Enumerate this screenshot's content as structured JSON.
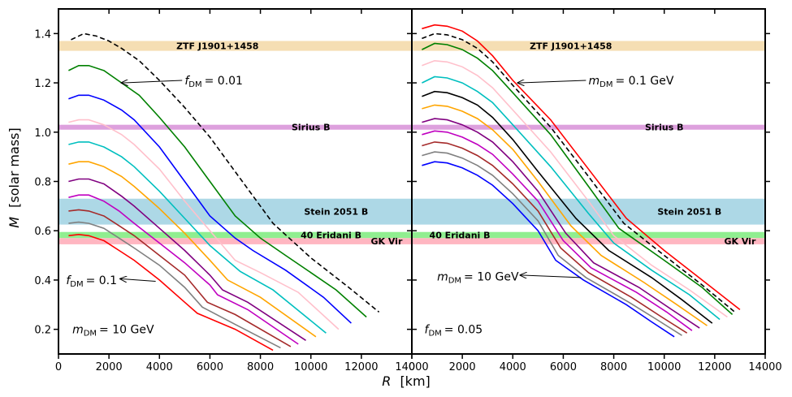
{
  "chart_data": [
    {
      "type": "line",
      "panel": "left",
      "xlabel_prefix": "R",
      "xlabel_unit": "[km]",
      "ylabel_prefix": "M",
      "ylabel_unit": "[solar mass]",
      "xlim": [
        0,
        14000
      ],
      "ylim": [
        0.1,
        1.5
      ],
      "xticks": [
        0,
        2000,
        4000,
        6000,
        8000,
        10000,
        12000,
        14000
      ],
      "xtick_labels": [
        "0",
        "2000",
        "4000",
        "6000",
        "8000",
        "10000",
        "12000",
        "14000"
      ],
      "yticks": [
        0.2,
        0.4,
        0.6,
        0.8,
        1.0,
        1.2,
        1.4
      ],
      "ytick_labels": [
        "0.2",
        "0.4",
        "0.6",
        "0.8",
        "1.0",
        "1.2",
        "1.4"
      ],
      "bands": [
        {
          "name": "ZTF J1901+1458",
          "y": [
            1.33,
            1.37
          ],
          "color": "#f5deb3",
          "label_x": 6300
        },
        {
          "name": "Sirius B",
          "y": [
            1.01,
            1.03
          ],
          "color": "#dda0dd",
          "label_x": 10000
        },
        {
          "name": "Stein 2051 B",
          "y": [
            0.625,
            0.73
          ],
          "color": "#add8e6",
          "label_x": 11000
        },
        {
          "name": "40 Eridani B",
          "y": [
            0.57,
            0.595
          ],
          "color": "#90ee90",
          "label_x": 10800
        },
        {
          "name": "GK Vir",
          "y": [
            0.545,
            0.57
          ],
          "color": "#ffb6c1",
          "label_x": 13000
        }
      ],
      "series": [
        {
          "name": "baseline",
          "color": "#000000",
          "dashed": true,
          "x": [
            500,
            1000,
            1500,
            2000,
            2500,
            3200,
            4000,
            5000,
            6000,
            7000,
            8500,
            10000,
            11500,
            12700
          ],
          "y": [
            1.375,
            1.4,
            1.39,
            1.37,
            1.34,
            1.29,
            1.21,
            1.1,
            0.98,
            0.84,
            0.63,
            0.49,
            0.37,
            0.27
          ]
        },
        {
          "name": "series-green",
          "color": "#008000",
          "dashed": false,
          "x": [
            400,
            800,
            1200,
            1800,
            2500,
            3200,
            4000,
            5000,
            6000,
            7000,
            8000,
            9000,
            10000,
            11000,
            12200
          ],
          "y": [
            1.25,
            1.27,
            1.27,
            1.25,
            1.2,
            1.15,
            1.06,
            0.94,
            0.8,
            0.66,
            0.57,
            0.5,
            0.43,
            0.36,
            0.25
          ]
        },
        {
          "name": "series-blue",
          "color": "#0000ff",
          "dashed": false,
          "x": [
            400,
            800,
            1200,
            1800,
            2500,
            3000,
            4000,
            5000,
            6000,
            7000,
            7700,
            9000,
            10500,
            11600
          ],
          "y": [
            1.135,
            1.15,
            1.15,
            1.13,
            1.09,
            1.05,
            0.94,
            0.8,
            0.66,
            0.57,
            0.52,
            0.44,
            0.33,
            0.225
          ]
        },
        {
          "name": "series-pink",
          "color": "#ffc0cb",
          "dashed": false,
          "x": [
            400,
            800,
            1200,
            1800,
            2500,
            3000,
            4000,
            5000,
            6000,
            7000,
            8000,
            9500,
            11100
          ],
          "y": [
            1.04,
            1.05,
            1.05,
            1.03,
            0.99,
            0.95,
            0.85,
            0.72,
            0.6,
            0.48,
            0.43,
            0.35,
            0.2
          ]
        },
        {
          "name": "series-cyan",
          "color": "#00bfbf",
          "dashed": false,
          "x": [
            400,
            800,
            1200,
            1800,
            2500,
            3000,
            4000,
            5000,
            6000,
            7200,
            8500,
            10600
          ],
          "y": [
            0.95,
            0.96,
            0.96,
            0.94,
            0.9,
            0.86,
            0.76,
            0.65,
            0.54,
            0.435,
            0.36,
            0.185
          ]
        },
        {
          "name": "series-orange",
          "color": "#ffa500",
          "dashed": false,
          "x": [
            400,
            800,
            1200,
            1800,
            2500,
            3000,
            4000,
            5000,
            6000,
            6700,
            8000,
            10200
          ],
          "y": [
            0.87,
            0.88,
            0.88,
            0.86,
            0.82,
            0.78,
            0.69,
            0.59,
            0.48,
            0.4,
            0.33,
            0.17
          ]
        },
        {
          "name": "series-purple",
          "color": "#800080",
          "dashed": false,
          "x": [
            400,
            800,
            1200,
            1800,
            2500,
            3000,
            4000,
            5000,
            6000,
            6500,
            7500,
            9800
          ],
          "y": [
            0.8,
            0.81,
            0.81,
            0.79,
            0.74,
            0.7,
            0.61,
            0.52,
            0.42,
            0.36,
            0.31,
            0.155
          ]
        },
        {
          "name": "series-magenta",
          "color": "#c000c0",
          "dashed": false,
          "x": [
            400,
            800,
            1200,
            1800,
            2400,
            3000,
            4000,
            5000,
            6000,
            6300,
            7500,
            9500
          ],
          "y": [
            0.735,
            0.745,
            0.745,
            0.72,
            0.68,
            0.63,
            0.55,
            0.47,
            0.38,
            0.34,
            0.28,
            0.14
          ]
        },
        {
          "name": "series-brown",
          "color": "#a52a2a",
          "dashed": false,
          "x": [
            400,
            800,
            1200,
            1800,
            2400,
            3000,
            4000,
            5000,
            5900,
            7000,
            9200
          ],
          "y": [
            0.68,
            0.685,
            0.68,
            0.66,
            0.62,
            0.58,
            0.5,
            0.42,
            0.31,
            0.26,
            0.13
          ]
        },
        {
          "name": "series-gray",
          "color": "#808080",
          "dashed": false,
          "x": [
            400,
            800,
            1200,
            1800,
            2400,
            3000,
            4000,
            5000,
            5700,
            7000,
            8800
          ],
          "y": [
            0.63,
            0.635,
            0.63,
            0.61,
            0.57,
            0.53,
            0.46,
            0.37,
            0.29,
            0.22,
            0.125
          ]
        },
        {
          "name": "series-red",
          "color": "#ff0000",
          "dashed": false,
          "x": [
            400,
            800,
            1200,
            1800,
            2400,
            3000,
            4000,
            5000,
            5500,
            7000,
            8500
          ],
          "y": [
            0.58,
            0.585,
            0.58,
            0.56,
            0.52,
            0.48,
            0.4,
            0.31,
            0.265,
            0.2,
            0.115
          ]
        }
      ],
      "annotations": [
        {
          "name": "fdm-annotation",
          "label": "f",
          "sub": "DM",
          "value": "= 0.01",
          "text_x": 5000,
          "text_y": 1.21,
          "arrow_from": [
            4900,
            1.21
          ],
          "arrow_to": [
            2500,
            1.2
          ]
        },
        {
          "name": "fdm-annotation-low",
          "label": "f",
          "sub": "DM",
          "value": "= 0.1",
          "text_x": 300,
          "text_y": 0.4,
          "arrow_from": [
            3850,
            0.395
          ],
          "arrow_to": [
            2450,
            0.405
          ]
        },
        {
          "name": "mdm-annotation",
          "label": "m",
          "sub": "DM",
          "value": "= 10 GeV",
          "text_x": 550,
          "text_y": 0.2
        }
      ]
    },
    {
      "type": "line",
      "panel": "right",
      "xlim": [
        0,
        14000
      ],
      "ylim": [
        0.1,
        1.5
      ],
      "xticks": [
        0,
        2000,
        4000,
        6000,
        8000,
        10000,
        12000,
        14000
      ],
      "xtick_labels": [
        "0",
        "2000",
        "4000",
        "6000",
        "8000",
        "10000",
        "12000",
        "14000"
      ],
      "yticks": [
        0.2,
        0.4,
        0.6,
        0.8,
        1.0,
        1.2,
        1.4
      ],
      "bands": [
        {
          "name": "ZTF J1901+1458",
          "y": [
            1.33,
            1.37
          ],
          "color": "#f5deb3",
          "label_x": 6300
        },
        {
          "name": "Sirius B",
          "y": [
            1.01,
            1.03
          ],
          "color": "#dda0dd",
          "label_x": 10000
        },
        {
          "name": "Stein 2051 B",
          "y": [
            0.625,
            0.73
          ],
          "color": "#add8e6",
          "label_x": 11000
        },
        {
          "name": "40 Eridani B",
          "y": [
            0.57,
            0.595
          ],
          "color": "#90ee90",
          "label_x": 1900
        },
        {
          "name": "GK Vir",
          "y": [
            0.545,
            0.57
          ],
          "color": "#ffb6c1",
          "label_x": 13000
        }
      ],
      "series": [
        {
          "name": "series-red",
          "color": "#ff0000",
          "dashed": false,
          "x": [
            400,
            900,
            1400,
            2000,
            2600,
            3200,
            4000,
            5500,
            7000,
            8500,
            10000,
            11500,
            13000
          ],
          "y": [
            1.42,
            1.435,
            1.43,
            1.41,
            1.37,
            1.31,
            1.21,
            1.05,
            0.85,
            0.65,
            0.52,
            0.4,
            0.28
          ]
        },
        {
          "name": "baseline",
          "color": "#000000",
          "dashed": true,
          "x": [
            400,
            900,
            1400,
            2000,
            2600,
            3200,
            4000,
            5500,
            7000,
            8400,
            10000,
            11500,
            12800
          ],
          "y": [
            1.38,
            1.4,
            1.395,
            1.375,
            1.34,
            1.285,
            1.19,
            1.02,
            0.82,
            0.63,
            0.5,
            0.38,
            0.27
          ]
        },
        {
          "name": "series-green",
          "color": "#008000",
          "dashed": false,
          "x": [
            400,
            900,
            1400,
            2000,
            2600,
            3200,
            4000,
            5500,
            7000,
            8200,
            10000,
            11500,
            12700
          ],
          "y": [
            1.335,
            1.36,
            1.355,
            1.335,
            1.3,
            1.25,
            1.16,
            0.99,
            0.78,
            0.61,
            0.48,
            0.37,
            0.26
          ]
        },
        {
          "name": "series-pink",
          "color": "#ffc0cb",
          "dashed": false,
          "x": [
            400,
            900,
            1400,
            2000,
            2600,
            3200,
            4000,
            5500,
            7000,
            8000,
            9500,
            11000,
            12500
          ],
          "y": [
            1.27,
            1.29,
            1.285,
            1.265,
            1.23,
            1.18,
            1.09,
            0.92,
            0.72,
            0.58,
            0.46,
            0.36,
            0.25
          ]
        },
        {
          "name": "series-cyan",
          "color": "#00bfbf",
          "dashed": false,
          "x": [
            400,
            900,
            1400,
            2000,
            2600,
            3200,
            4000,
            5500,
            7000,
            8000,
            9500,
            11000,
            12200
          ],
          "y": [
            1.2,
            1.225,
            1.22,
            1.2,
            1.165,
            1.12,
            1.03,
            0.86,
            0.67,
            0.55,
            0.44,
            0.34,
            0.24
          ]
        },
        {
          "name": "series-black",
          "color": "#000000",
          "dashed": false,
          "x": [
            400,
            900,
            1400,
            2000,
            2600,
            3200,
            4000,
            5000,
            6500,
            7800,
            9500,
            10700,
            11900
          ],
          "y": [
            1.145,
            1.165,
            1.16,
            1.14,
            1.11,
            1.06,
            0.97,
            0.84,
            0.65,
            0.52,
            0.41,
            0.32,
            0.225
          ]
        },
        {
          "name": "series-orange",
          "color": "#ffa500",
          "dashed": false,
          "x": [
            400,
            900,
            1400,
            2000,
            2600,
            3200,
            4000,
            5000,
            6300,
            7500,
            9200,
            10500,
            11700
          ],
          "y": [
            1.095,
            1.11,
            1.105,
            1.085,
            1.055,
            1.01,
            0.93,
            0.8,
            0.62,
            0.5,
            0.39,
            0.3,
            0.215
          ]
        },
        {
          "name": "series-purple",
          "color": "#800080",
          "dashed": false,
          "x": [
            400,
            900,
            1400,
            2000,
            2600,
            3200,
            4000,
            5000,
            6100,
            7200,
            9000,
            10300,
            11400
          ],
          "y": [
            1.04,
            1.055,
            1.05,
            1.03,
            1.0,
            0.96,
            0.88,
            0.76,
            0.59,
            0.47,
            0.37,
            0.28,
            0.205
          ]
        },
        {
          "name": "series-magenta",
          "color": "#c000c0",
          "dashed": false,
          "x": [
            400,
            900,
            1400,
            2000,
            2600,
            3200,
            4000,
            5000,
            6000,
            7100,
            8900,
            10100,
            11100
          ],
          "y": [
            0.99,
            1.005,
            1.0,
            0.98,
            0.95,
            0.91,
            0.83,
            0.72,
            0.56,
            0.45,
            0.35,
            0.27,
            0.195
          ]
        },
        {
          "name": "series-brown",
          "color": "#a52a2a",
          "dashed": false,
          "x": [
            400,
            900,
            1400,
            2000,
            2600,
            3200,
            4000,
            5000,
            5900,
            7000,
            8700,
            9900,
            10900
          ],
          "y": [
            0.945,
            0.96,
            0.955,
            0.935,
            0.905,
            0.865,
            0.79,
            0.68,
            0.53,
            0.43,
            0.33,
            0.25,
            0.185
          ]
        },
        {
          "name": "series-gray",
          "color": "#808080",
          "dashed": false,
          "x": [
            400,
            900,
            1400,
            2000,
            2600,
            3200,
            4000,
            5000,
            5800,
            6900,
            8600,
            9700,
            10700
          ],
          "y": [
            0.905,
            0.92,
            0.915,
            0.895,
            0.865,
            0.825,
            0.75,
            0.64,
            0.5,
            0.41,
            0.31,
            0.24,
            0.175
          ]
        },
        {
          "name": "series-blue",
          "color": "#0000ff",
          "dashed": false,
          "x": [
            400,
            900,
            1400,
            2000,
            2600,
            3200,
            4000,
            5000,
            5700,
            6800,
            8500,
            9500,
            10400
          ],
          "y": [
            0.865,
            0.88,
            0.875,
            0.855,
            0.825,
            0.785,
            0.71,
            0.6,
            0.48,
            0.4,
            0.3,
            0.23,
            0.17
          ]
        }
      ],
      "annotations": [
        {
          "name": "mdm-annotation-right",
          "label": "m",
          "sub": "DM",
          "value": "= 0.1 GeV",
          "text_x": 7000,
          "text_y": 1.21,
          "arrow_from": [
            6900,
            1.21
          ],
          "arrow_to": [
            4200,
            1.2
          ]
        },
        {
          "name": "mdm-annotation-low",
          "label": "m",
          "sub": "DM",
          "value": "= 10 GeV",
          "text_x": 1000,
          "text_y": 0.415,
          "arrow_from": [
            6700,
            0.41
          ],
          "arrow_to": [
            4300,
            0.42
          ]
        },
        {
          "name": "fdm-annotation-right",
          "label": "f",
          "sub": "DM",
          "value": "= 0.05",
          "text_x": 500,
          "text_y": 0.2
        }
      ]
    }
  ]
}
